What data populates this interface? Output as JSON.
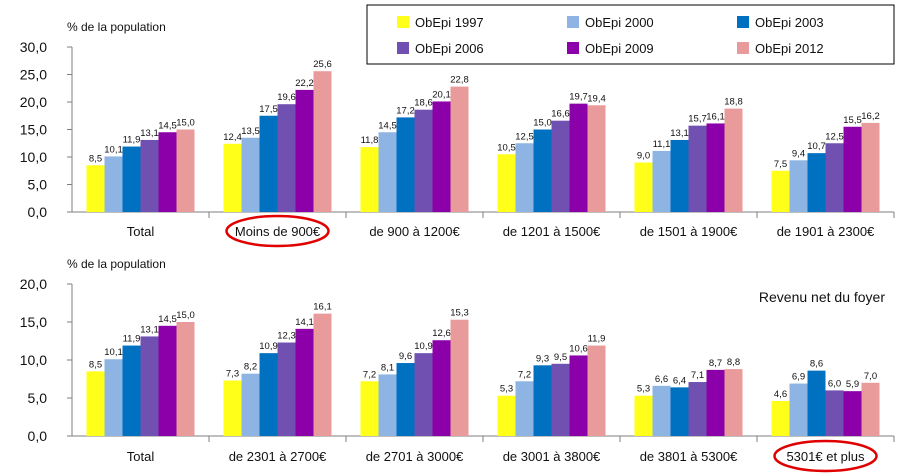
{
  "legend": {
    "entries": [
      {
        "name": "ObEpi 1997",
        "color": "#FFFF1A"
      },
      {
        "name": "ObEpi 2000",
        "color": "#8EB4E3"
      },
      {
        "name": "ObEpi 2003",
        "color": "#0070C0"
      },
      {
        "name": "ObEpi 2006",
        "color": "#7050B0"
      },
      {
        "name": "ObEpi 2009",
        "color": "#8B00A8"
      },
      {
        "name": "ObEpi 2012",
        "color": "#E99A9A"
      }
    ]
  },
  "highlight_color": "#E00000",
  "chart_data": [
    {
      "type": "bar",
      "ylabel": "% de la population",
      "ylim": [
        0,
        30
      ],
      "yticks": [
        "0,0",
        "5,0",
        "10,0",
        "15,0",
        "20,0",
        "25,0",
        "30,0"
      ],
      "grid": false,
      "legend_position": "top-right",
      "categories": [
        "Total",
        "Moins de 900€",
        "de 900 à 1200€",
        "de 1201 à 1500€",
        "de 1501 à 1900€",
        "de 1901 à 2300€"
      ],
      "highlighted_category": "Moins de 900€",
      "series": [
        {
          "name": "ObEpi 1997",
          "values": [
            8.5,
            12.4,
            11.8,
            10.5,
            9.0,
            7.5
          ],
          "labels": [
            "8,5",
            "12,4",
            "11,8",
            "10,5",
            "9,0",
            "7,5"
          ]
        },
        {
          "name": "ObEpi 2000",
          "values": [
            10.1,
            13.5,
            14.5,
            12.5,
            11.1,
            9.4
          ],
          "labels": [
            "10,1",
            "13,5",
            "14,5",
            "12,5",
            "11,1",
            "9,4"
          ]
        },
        {
          "name": "ObEpi 2003",
          "values": [
            11.9,
            17.5,
            17.2,
            15.0,
            13.1,
            10.7
          ],
          "labels": [
            "11,9",
            "17,5",
            "17,2",
            "15,0",
            "13,1",
            "10,7"
          ]
        },
        {
          "name": "ObEpi 2006",
          "values": [
            13.1,
            19.6,
            18.6,
            16.6,
            15.7,
            12.5
          ],
          "labels": [
            "13,1",
            "19,6",
            "18,6",
            "16,6",
            "15,7",
            "12,5"
          ]
        },
        {
          "name": "ObEpi 2009",
          "values": [
            14.5,
            22.2,
            20.1,
            19.7,
            16.1,
            15.5
          ],
          "labels": [
            "14,5",
            "22,2",
            "20,1",
            "19,7",
            "16,1",
            "15,5"
          ]
        },
        {
          "name": "ObEpi 2012",
          "values": [
            15.0,
            25.6,
            22.8,
            19.4,
            18.8,
            16.2
          ],
          "labels": [
            "15,0",
            "25,6",
            "22,8",
            "19,4",
            "18,8",
            "16,2"
          ]
        }
      ]
    },
    {
      "type": "bar",
      "ylabel": "% de la population",
      "annotation": "Revenu net du foyer",
      "ylim": [
        0,
        20
      ],
      "yticks": [
        "0,0",
        "5,0",
        "10,0",
        "15,0",
        "20,0"
      ],
      "grid": false,
      "categories": [
        "Total",
        "de 2301 à 2700€",
        "de 2701 à 3000€",
        "de 3001 à 3800€",
        "de 3801 à 5300€",
        "5301€ et plus"
      ],
      "highlighted_category": "5301€ et plus",
      "series": [
        {
          "name": "ObEpi 1997",
          "values": [
            8.5,
            7.3,
            7.2,
            5.3,
            5.3,
            4.6
          ],
          "labels": [
            "8,5",
            "7,3",
            "7,2",
            "5,3",
            "5,3",
            "4,6"
          ]
        },
        {
          "name": "ObEpi 2000",
          "values": [
            10.1,
            8.2,
            8.1,
            7.2,
            6.6,
            6.9
          ],
          "labels": [
            "10,1",
            "8,2",
            "8,1",
            "7,2",
            "6,6",
            "6,9"
          ]
        },
        {
          "name": "ObEpi 2003",
          "values": [
            11.9,
            10.9,
            9.6,
            9.3,
            6.4,
            8.6
          ],
          "labels": [
            "11,9",
            "10,9",
            "9,6",
            "9,3",
            "6,4",
            "8,6"
          ]
        },
        {
          "name": "ObEpi 2006",
          "values": [
            13.1,
            12.3,
            10.9,
            9.5,
            7.1,
            6.0
          ],
          "labels": [
            "13,1",
            "12,3",
            "10,9",
            "9,5",
            "7,1",
            "6,0"
          ]
        },
        {
          "name": "ObEpi 2009",
          "values": [
            14.5,
            14.1,
            12.6,
            10.6,
            8.7,
            5.9
          ],
          "labels": [
            "14,5",
            "14,1",
            "12,6",
            "10,6",
            "8,7",
            "5,9"
          ]
        },
        {
          "name": "ObEpi 2012",
          "values": [
            15.0,
            16.1,
            15.3,
            11.9,
            8.8,
            7.0
          ],
          "labels": [
            "15,0",
            "16,1",
            "15,3",
            "11,9",
            "8,8",
            "7,0"
          ]
        }
      ]
    }
  ]
}
